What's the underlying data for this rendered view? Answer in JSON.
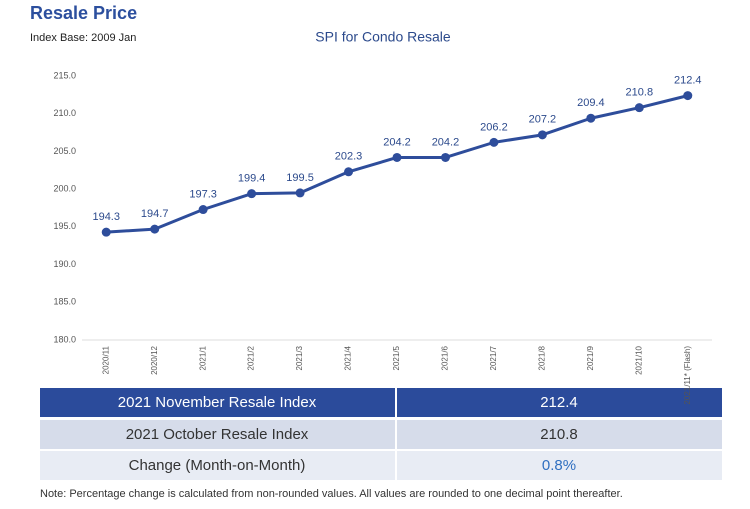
{
  "header": {
    "title": "Resale Price",
    "subtitle": "Index Base: 2009 Jan"
  },
  "chart_data": {
    "type": "line",
    "title": "SPI for Condo Resale",
    "categories": [
      "2020/11",
      "2020/12",
      "2021/1",
      "2021/2",
      "2021/3",
      "2021/4",
      "2021/5",
      "2021/6",
      "2021/7",
      "2021/8",
      "2021/9",
      "2021/10",
      "2021/11* (Flash)"
    ],
    "values": [
      194.3,
      194.7,
      197.3,
      199.4,
      199.5,
      202.3,
      204.2,
      204.2,
      206.2,
      207.2,
      209.4,
      210.8,
      212.4
    ],
    "color": "#2e4d9b",
    "ylim": [
      180,
      215
    ],
    "yticks": [
      {
        "value": 180,
        "label": "180.0"
      },
      {
        "value": 185,
        "label": "185.0"
      },
      {
        "value": 190,
        "label": "190.0"
      },
      {
        "value": 195,
        "label": "195.0"
      },
      {
        "value": 200,
        "label": "200.0"
      },
      {
        "value": 205,
        "label": "205.0"
      },
      {
        "value": 210,
        "label": "210.0"
      },
      {
        "value": 215,
        "label": "215.0"
      }
    ],
    "grid": false
  },
  "table": {
    "rows": [
      [
        "2021 November Resale Index",
        "212.4"
      ],
      [
        "2021 October Resale Index",
        "210.8"
      ],
      [
        "Change (Month-on-Month)",
        "0.8%"
      ]
    ]
  },
  "note": "Note: Percentage change is calculated from non-rounded values.  All values are rounded to one decimal point thereafter."
}
